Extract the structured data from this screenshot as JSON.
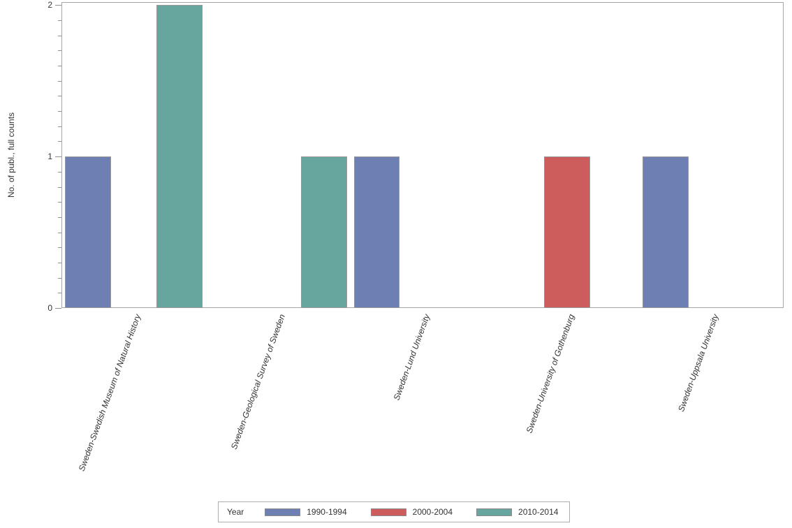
{
  "chart_data": {
    "type": "bar",
    "title": "",
    "ylabel": "No. of publ., full counts",
    "xlabel": "",
    "categories": [
      "Sweden-Swedish Museum of Natural History",
      "Sweden-Geological Survey of Sweden",
      "Sweden-Lund University",
      "Sweden-University of Gothenburg",
      "Sweden-Uppsala University"
    ],
    "series": [
      {
        "name": "1990-1994",
        "color": "#6E7FB4",
        "values": [
          1,
          0,
          1,
          0,
          1
        ]
      },
      {
        "name": "2000-2004",
        "color": "#CD5C5C",
        "values": [
          0,
          0,
          0,
          1,
          0
        ]
      },
      {
        "name": "2010-2014",
        "color": "#66A69E",
        "values": [
          2,
          1,
          0,
          0,
          0
        ]
      }
    ],
    "ylim": [
      0,
      2.02
    ],
    "yticks": [
      0,
      1,
      2
    ],
    "minor_tick_step": 0.1,
    "grid": false,
    "legend_title": "Year",
    "legend_position": "bottom",
    "colors": {
      "plot_border": "#a6a6a6",
      "tick": "#8f8f8f",
      "bar_border": "#999999",
      "text": "#333333"
    }
  }
}
